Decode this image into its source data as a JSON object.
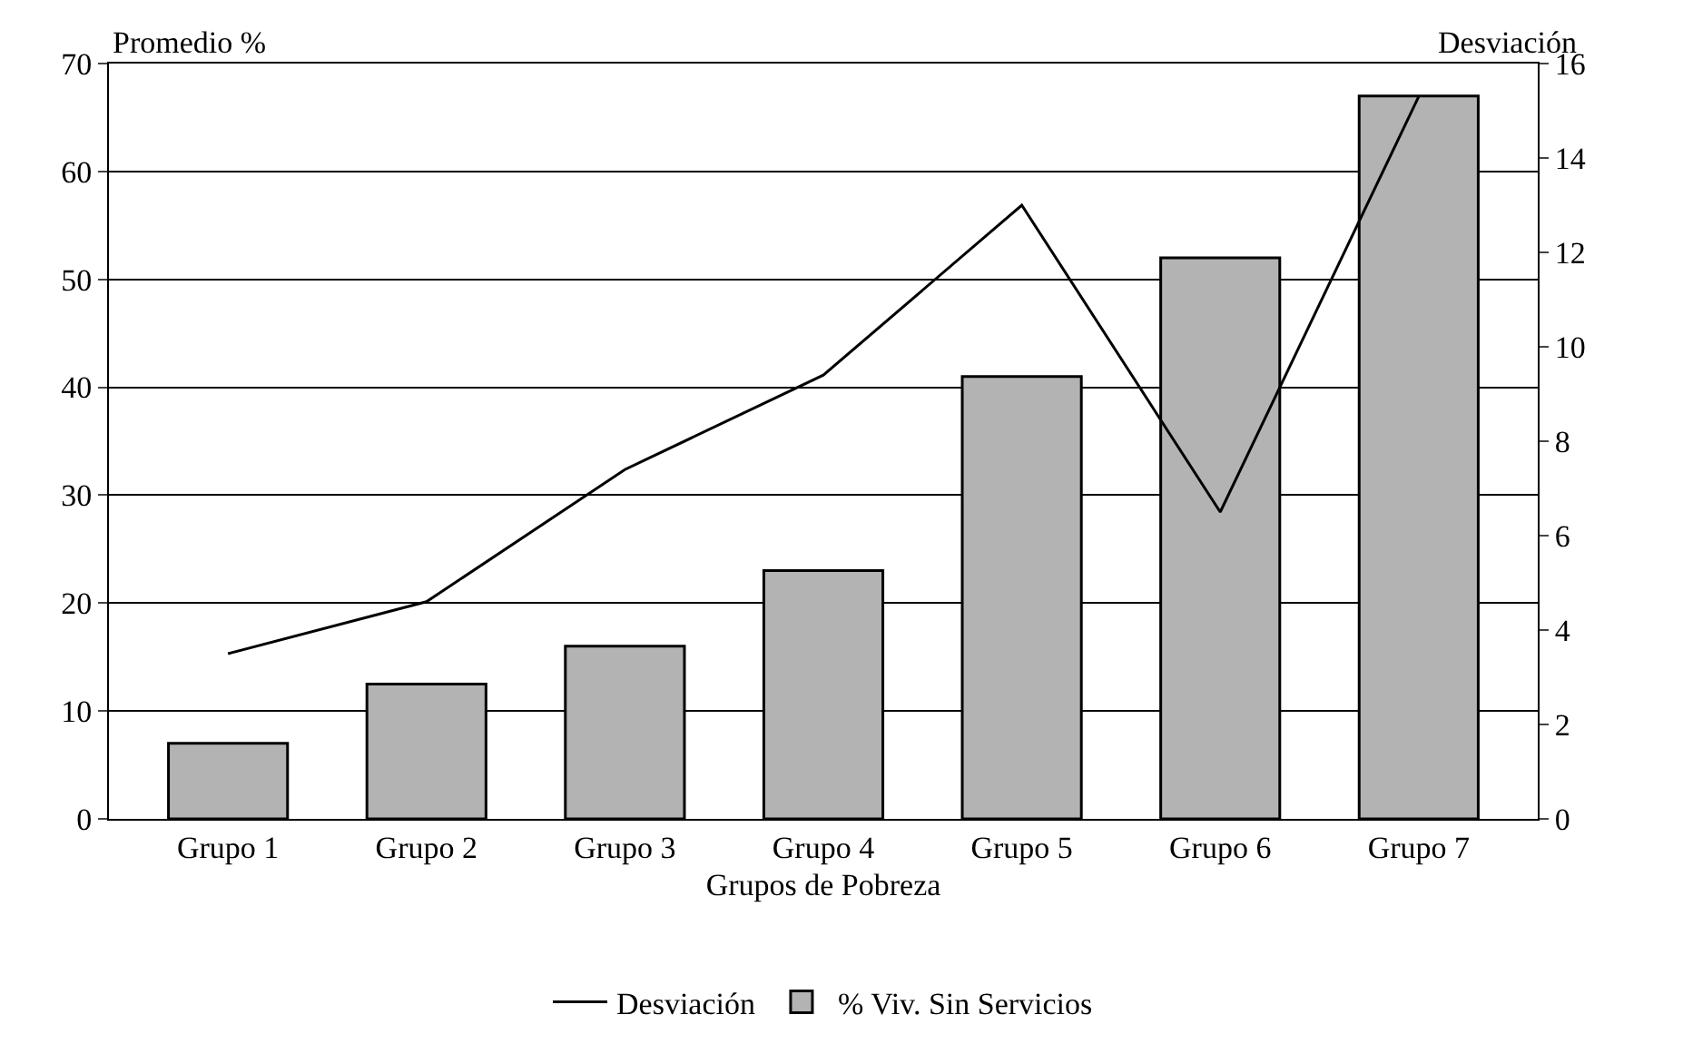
{
  "chart_data": {
    "type": "bar",
    "xlabel": "Grupos de Pobreza",
    "ylabel": "Promedio %",
    "y2label": "Desviación",
    "categories": [
      "Grupo 1",
      "Grupo 2",
      "Grupo 3",
      "Grupo 4",
      "Grupo 5",
      "Grupo 6",
      "Grupo 7"
    ],
    "series": [
      {
        "name": "Desviación",
        "type": "line",
        "axis": "y2",
        "color": "#000000",
        "values": [
          3.5,
          4.6,
          7.4,
          9.4,
          13.0,
          6.5,
          15.3
        ]
      },
      {
        "name": "% Viv. Sin Servicios",
        "color": "#b3b3b3",
        "values": [
          7,
          12.5,
          16,
          23,
          41,
          52,
          67
        ]
      }
    ],
    "ylim": [
      0,
      70
    ],
    "yticks": [
      0,
      10,
      20,
      30,
      40,
      50,
      60,
      70
    ],
    "y2lim": [
      0,
      16
    ],
    "y2ticks": [
      0,
      2,
      4,
      6,
      8,
      10,
      12,
      14,
      16
    ],
    "grid": "y",
    "legend": "bottom",
    "marker": "none",
    "line_style": "solid"
  }
}
